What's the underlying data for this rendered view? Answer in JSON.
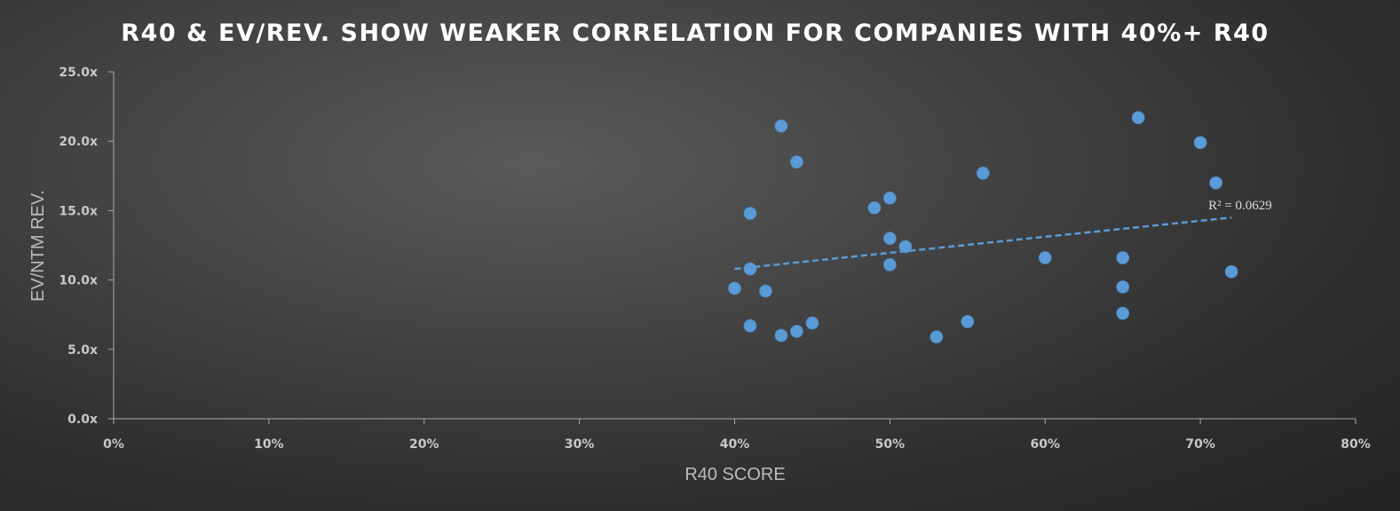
{
  "chart_data": {
    "type": "scatter",
    "title": "R40 & EV/REV. SHOW WEAKER CORRELATION FOR COMPANIES WITH 40%+ R40",
    "xlabel": "R40 SCORE",
    "ylabel": "EV/NTM REV.",
    "xlim": [
      0,
      0.8
    ],
    "ylim": [
      0,
      25
    ],
    "x_ticks": [
      0,
      0.1,
      0.2,
      0.3,
      0.4,
      0.5,
      0.6,
      0.7,
      0.8
    ],
    "x_tick_labels": [
      "0%",
      "10%",
      "20%",
      "30%",
      "40%",
      "50%",
      "60%",
      "70%",
      "80%"
    ],
    "y_ticks": [
      0,
      5,
      10,
      15,
      20,
      25
    ],
    "y_tick_labels": [
      "0.0x",
      "5.0x",
      "10.0x",
      "15.0x",
      "20.0x",
      "25.0x"
    ],
    "grid": false,
    "legend": "none",
    "marker_color": "#5b9bd5",
    "trendline": {
      "type": "linear",
      "x_range": [
        0.4,
        0.72
      ],
      "y_range": [
        10.8,
        14.5
      ],
      "color": "#5b9bd5",
      "style": "dashed",
      "r2_label": "R² = 0.0629"
    },
    "points": [
      {
        "x": 0.43,
        "y": 21.1
      },
      {
        "x": 0.44,
        "y": 18.5
      },
      {
        "x": 0.41,
        "y": 14.8
      },
      {
        "x": 0.41,
        "y": 10.8
      },
      {
        "x": 0.4,
        "y": 9.4
      },
      {
        "x": 0.42,
        "y": 9.2
      },
      {
        "x": 0.41,
        "y": 6.7
      },
      {
        "x": 0.43,
        "y": 6.0
      },
      {
        "x": 0.44,
        "y": 6.3
      },
      {
        "x": 0.45,
        "y": 6.9
      },
      {
        "x": 0.49,
        "y": 15.2
      },
      {
        "x": 0.5,
        "y": 15.9
      },
      {
        "x": 0.5,
        "y": 13.0
      },
      {
        "x": 0.51,
        "y": 12.4
      },
      {
        "x": 0.5,
        "y": 11.1
      },
      {
        "x": 0.53,
        "y": 5.9
      },
      {
        "x": 0.55,
        "y": 7.0
      },
      {
        "x": 0.56,
        "y": 17.7
      },
      {
        "x": 0.6,
        "y": 11.6
      },
      {
        "x": 0.65,
        "y": 11.6
      },
      {
        "x": 0.65,
        "y": 9.5
      },
      {
        "x": 0.65,
        "y": 7.6
      },
      {
        "x": 0.66,
        "y": 21.7
      },
      {
        "x": 0.7,
        "y": 19.9
      },
      {
        "x": 0.71,
        "y": 17.0
      },
      {
        "x": 0.72,
        "y": 10.6
      }
    ]
  }
}
